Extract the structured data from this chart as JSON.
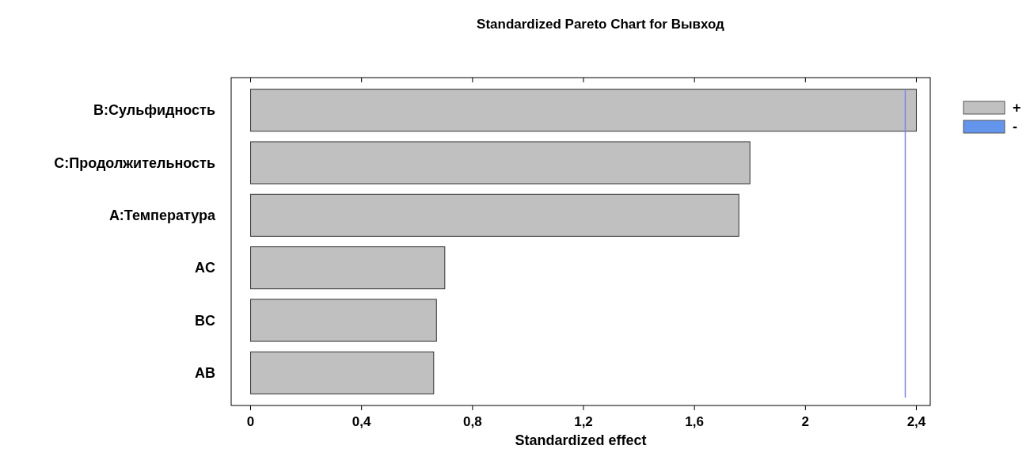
{
  "chart_data": {
    "type": "bar",
    "orientation": "horizontal",
    "title": "Standardized Pareto Chart for Вывход",
    "xlabel": "Standardized effect",
    "categories": [
      "B:Сульфидность",
      "C:Продолжительность",
      "A:Температура",
      "AC",
      "BC",
      "AB"
    ],
    "series": [
      {
        "name": "+",
        "color": "#c0c0c0",
        "values": [
          2.4,
          1.8,
          1.76,
          0.7,
          0.67,
          0.66
        ]
      },
      {
        "name": "-",
        "color": "#6495ed",
        "values": [
          null,
          null,
          null,
          null,
          null,
          null
        ]
      }
    ],
    "xlim": [
      -0.07,
      2.45
    ],
    "xticks": [
      0,
      {
        "value": 0.4,
        "label": "0,4"
      },
      {
        "value": 0.8,
        "label": "0,8"
      },
      {
        "value": 1.2,
        "label": "1,2"
      },
      {
        "value": 1.6,
        "label": "1,6"
      },
      2,
      {
        "value": 2.4,
        "label": "2,4"
      }
    ],
    "ref_lines": [
      {
        "axis": "x",
        "value": 2.36,
        "color": "#8080ff"
      }
    ],
    "grid": false,
    "legend": "top right"
  }
}
